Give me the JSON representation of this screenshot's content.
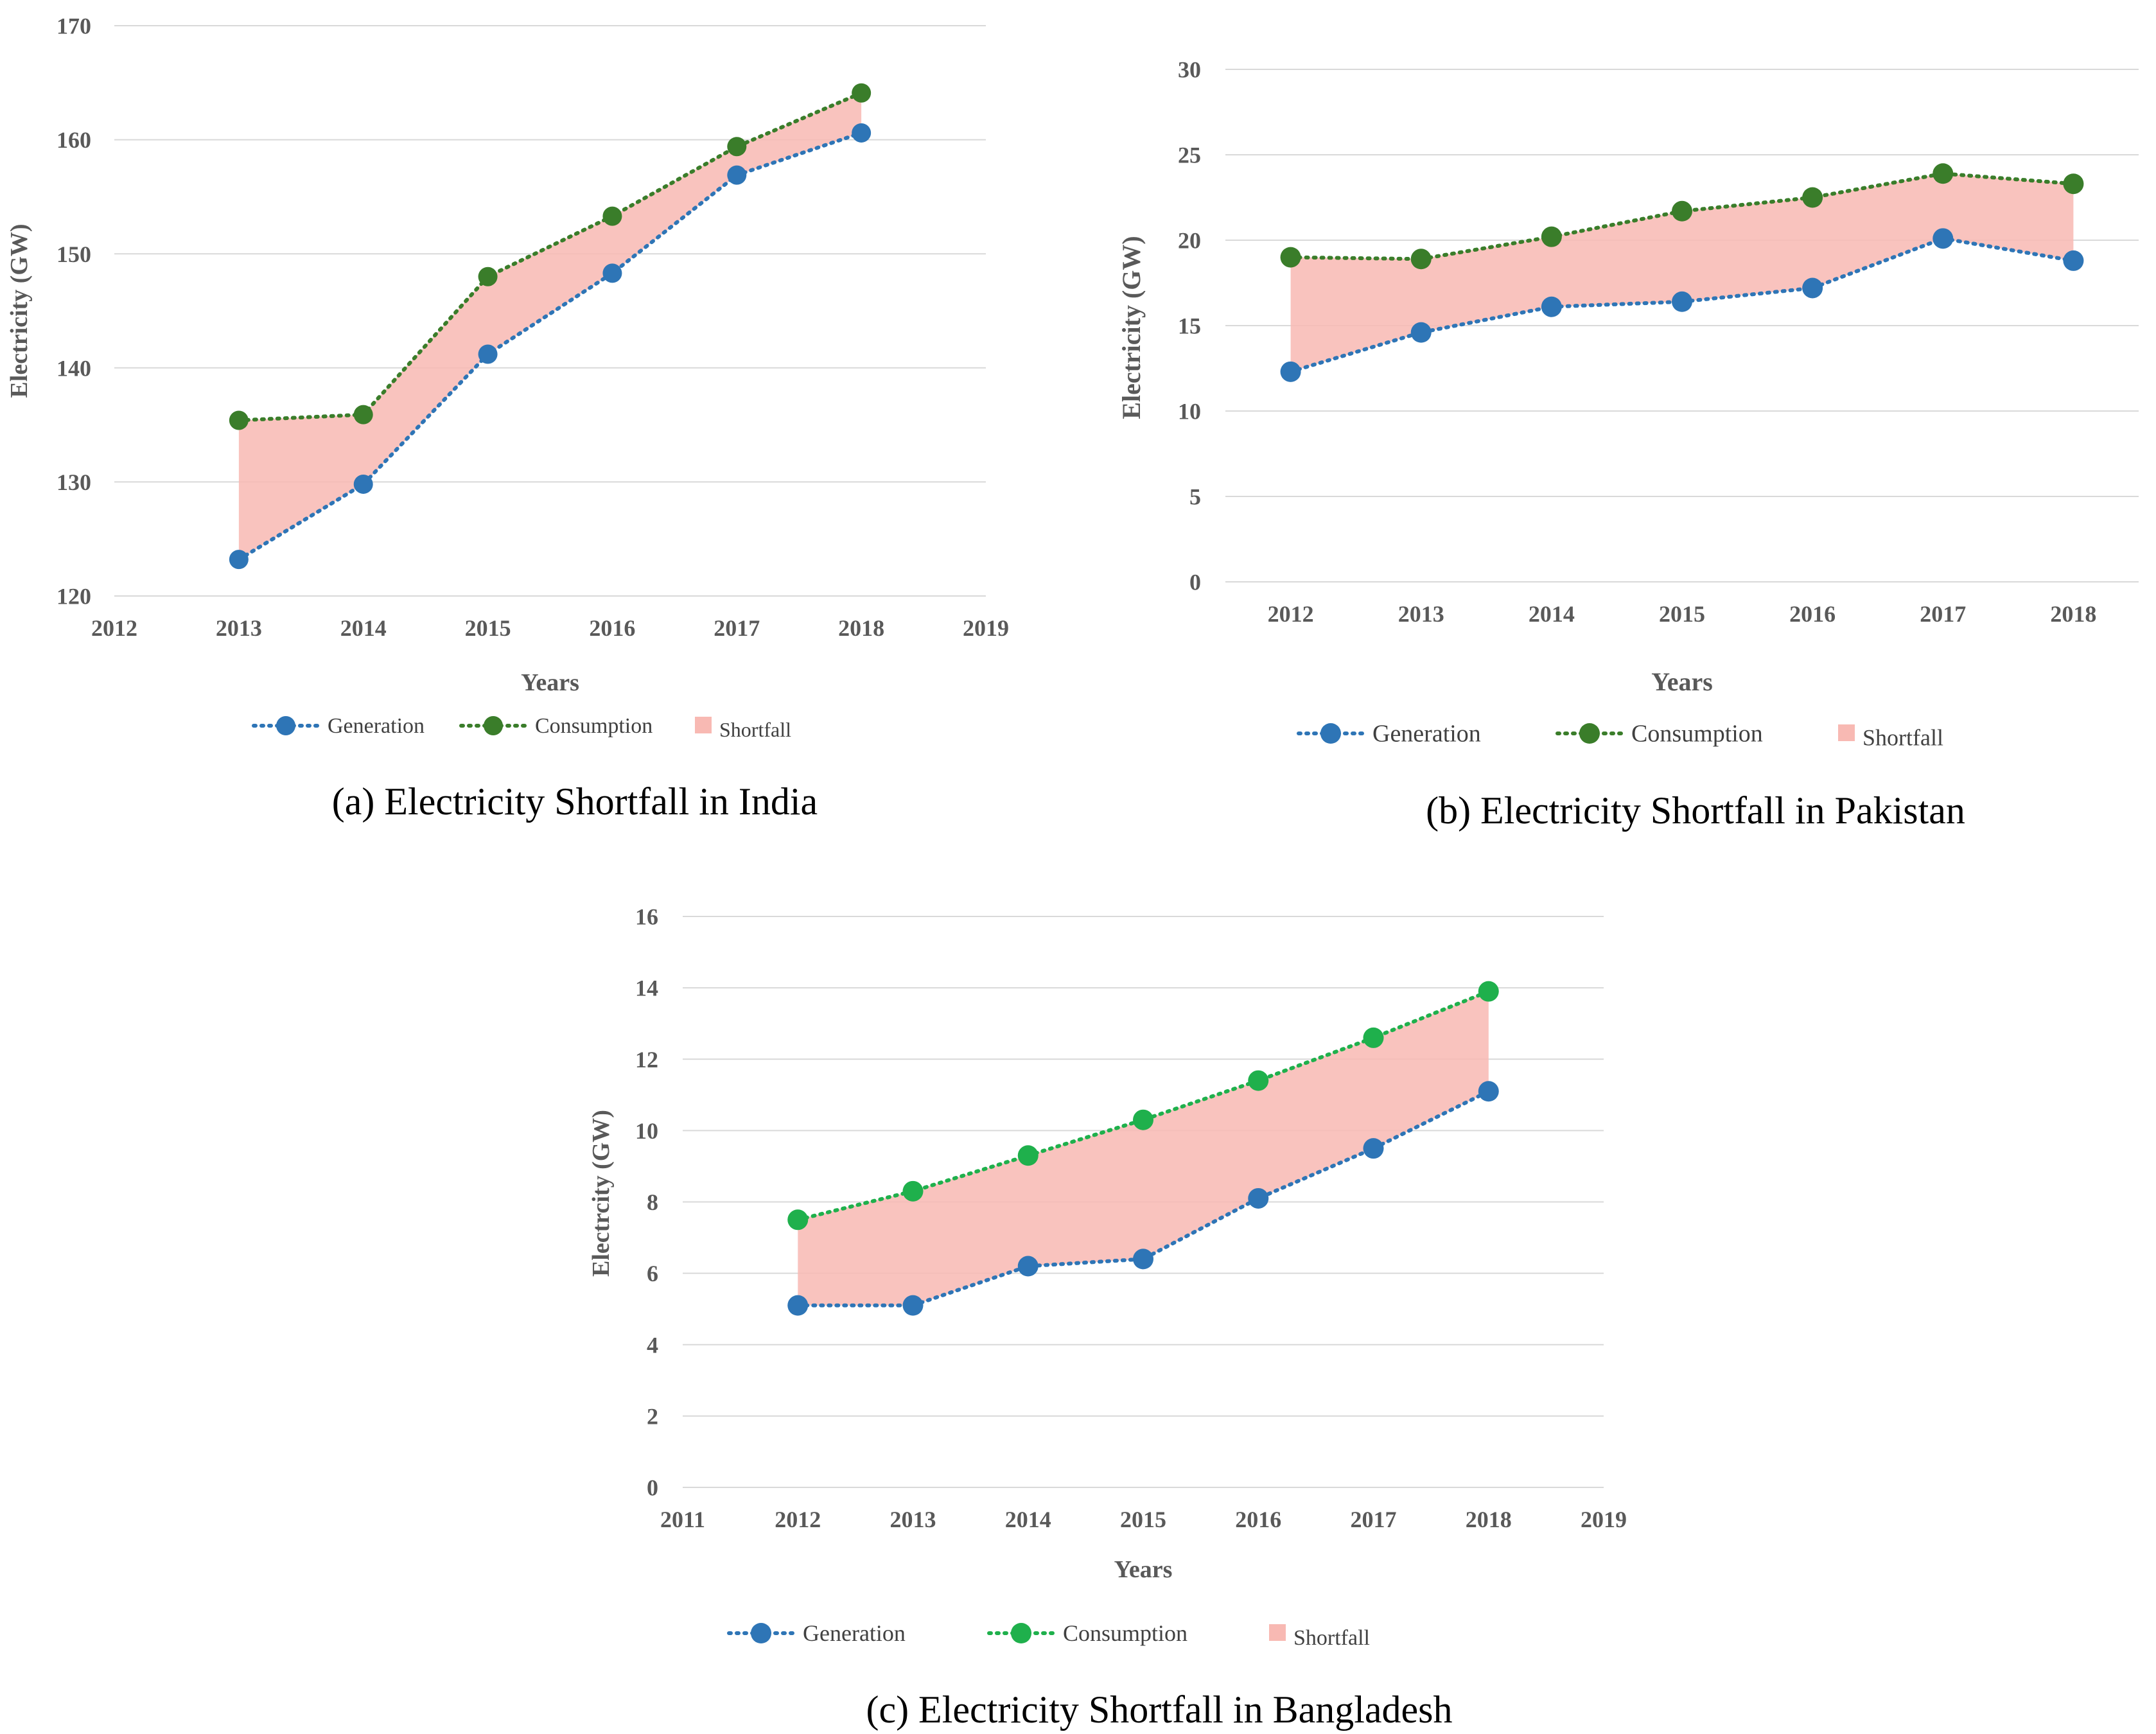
{
  "figure": {
    "background": "#ffffff"
  },
  "colors": {
    "generation": "#2E75B6",
    "shortfall_fill": "#F8B9B3",
    "grid": "#D9D9D9",
    "axis_text": "#595959"
  },
  "chart_data": [
    {
      "id": "india",
      "type": "area",
      "caption": "(a) Electricity Shortfall in India",
      "xlabel": "Years",
      "ylabel": "Electricity (GW)",
      "xticks": [
        "2012",
        "2013",
        "2014",
        "2015",
        "2016",
        "2017",
        "2018",
        "2019"
      ],
      "xlim": [
        2012,
        2019
      ],
      "ylim": [
        120,
        170
      ],
      "yticks": [
        "120",
        "130",
        "140",
        "150",
        "160",
        "170"
      ],
      "grid": true,
      "legend_position": "bottom",
      "x": [
        2013,
        2014,
        2015,
        2016,
        2017,
        2018
      ],
      "series": [
        {
          "name": "Generation",
          "color": "#2E75B6",
          "values": [
            123.2,
            129.8,
            141.2,
            148.3,
            156.9,
            160.6
          ]
        },
        {
          "name": "Consumption",
          "color": "#3A7D2A",
          "values": [
            135.4,
            135.9,
            148.0,
            153.3,
            159.4,
            164.1
          ]
        }
      ],
      "area_label": "Shortfall"
    },
    {
      "id": "pakistan",
      "type": "area",
      "caption": "(b) Electricity Shortfall in Pakistan",
      "xlabel": "Years",
      "ylabel": "Electricity (GW)",
      "xticks": [
        "2012",
        "2013",
        "2014",
        "2015",
        "2016",
        "2017",
        "2018"
      ],
      "xlim": [
        2011.5,
        2018.5
      ],
      "ylim": [
        0,
        30
      ],
      "yticks": [
        "0",
        "5",
        "10",
        "15",
        "20",
        "25",
        "30"
      ],
      "grid": true,
      "legend_position": "bottom",
      "x": [
        2012,
        2013,
        2014,
        2015,
        2016,
        2017,
        2018
      ],
      "series": [
        {
          "name": "Generation",
          "color": "#2E75B6",
          "values": [
            12.3,
            14.6,
            16.1,
            16.4,
            17.2,
            20.1,
            18.8
          ]
        },
        {
          "name": "Consumption",
          "color": "#3A7D2A",
          "values": [
            19.0,
            18.9,
            20.2,
            21.7,
            22.5,
            23.9,
            23.3
          ]
        }
      ],
      "area_label": "Shortfall"
    },
    {
      "id": "bangladesh",
      "type": "area",
      "caption": "(c) Electricity Shortfall in Bangladesh",
      "xlabel": "Years",
      "ylabel": "Electrcity (GW)",
      "xticks": [
        "2011",
        "2012",
        "2013",
        "2014",
        "2015",
        "2016",
        "2017",
        "2018",
        "2019"
      ],
      "xlim": [
        2011,
        2019
      ],
      "ylim": [
        0,
        16
      ],
      "yticks": [
        "0",
        "2",
        "4",
        "6",
        "8",
        "10",
        "12",
        "14",
        "16"
      ],
      "grid": true,
      "legend_position": "bottom",
      "x": [
        2012,
        2013,
        2014,
        2015,
        2016,
        2017,
        2018
      ],
      "series": [
        {
          "name": "Generation",
          "color": "#2E75B6",
          "values": [
            5.1,
            5.1,
            6.2,
            6.4,
            8.1,
            9.5,
            11.1
          ]
        },
        {
          "name": "Consumption",
          "color": "#1FB04C",
          "values": [
            7.5,
            8.3,
            9.3,
            10.3,
            11.4,
            12.6,
            13.9
          ]
        }
      ],
      "area_label": "Shortfall"
    }
  ]
}
